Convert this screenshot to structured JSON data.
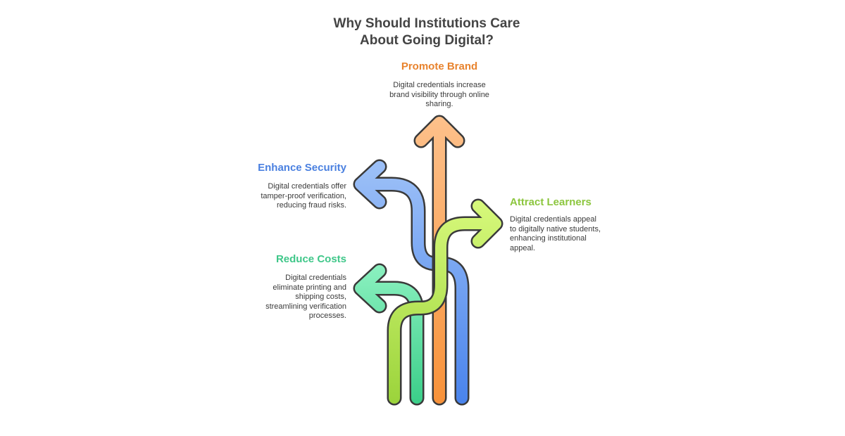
{
  "title": {
    "line1": "Why Should Institutions Care",
    "line2": "About Going Digital?"
  },
  "items": [
    {
      "key": "promote-brand",
      "heading": "Promote Brand",
      "description": "Digital credentials increase brand visibility through online sharing.",
      "color": "#f0903a"
    },
    {
      "key": "enhance-security",
      "heading": "Enhance Security",
      "description": "Digital credentials offer tamper-proof verification, reducing fraud risks.",
      "color": "#4f86e6"
    },
    {
      "key": "attract-learners",
      "heading": "Attract Learners",
      "description": "Digital credentials appeal to digitally native students, enhancing institutional appeal.",
      "color": "#8cc63e"
    },
    {
      "key": "reduce-costs",
      "heading": "Reduce Costs",
      "description": "Digital credentials eliminate printing and shipping costs, streamlining verification processes.",
      "color": "#3fcf8a"
    }
  ]
}
